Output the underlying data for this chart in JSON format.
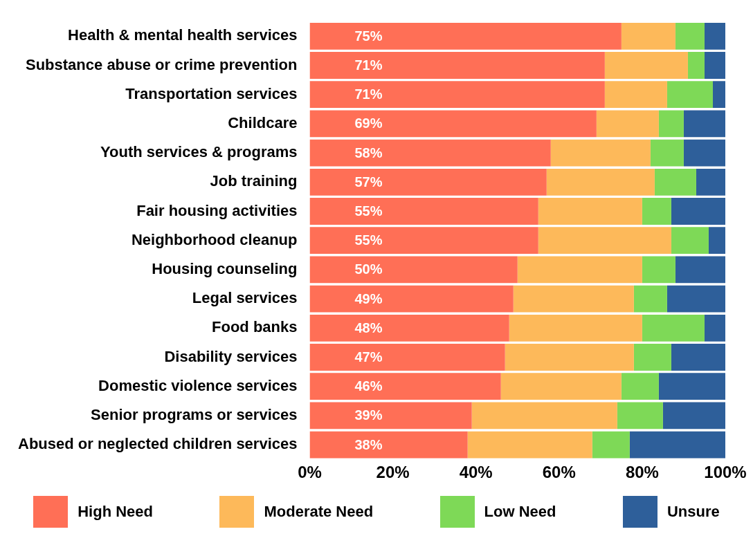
{
  "chart_data": {
    "type": "bar",
    "orientation": "horizontal",
    "stacked": true,
    "categories": [
      "Health & mental health services",
      "Substance abuse or crime prevention",
      "Transportation services",
      "Childcare",
      "Youth services & programs",
      "Job training",
      "Fair housing activities",
      "Neighborhood cleanup",
      "Housing counseling",
      "Legal services",
      "Food banks",
      "Disability services",
      "Domestic violence services",
      "Senior programs or services",
      "Abused or neglected children services"
    ],
    "series": [
      {
        "name": "High Need",
        "color": "#ff6f56",
        "values": [
          75,
          71,
          71,
          69,
          58,
          57,
          55,
          55,
          50,
          49,
          48,
          47,
          46,
          39,
          38
        ],
        "value_labels": [
          "75%",
          "71%",
          "71%",
          "69%",
          "58%",
          "57%",
          "55%",
          "55%",
          "50%",
          "49%",
          "48%",
          "47%",
          "46%",
          "39%",
          "38%"
        ]
      },
      {
        "name": "Moderate Need",
        "color": "#fdb95a",
        "values": [
          13,
          20,
          15,
          15,
          24,
          26,
          25,
          32,
          30,
          29,
          32,
          31,
          29,
          35,
          30
        ]
      },
      {
        "name": "Low Need",
        "color": "#7ed957",
        "values": [
          7,
          4,
          11,
          6,
          8,
          10,
          7,
          9,
          8,
          8,
          15,
          9,
          9,
          11,
          9
        ]
      },
      {
        "name": "Unsure",
        "color": "#2e5f9a",
        "values": [
          5,
          5,
          3,
          10,
          10,
          7,
          13,
          4,
          12,
          14,
          5,
          13,
          16,
          15,
          23
        ]
      }
    ],
    "xlim": [
      0,
      100
    ],
    "xticks": [
      {
        "value": 0,
        "label": "0%"
      },
      {
        "value": 20,
        "label": "20%"
      },
      {
        "value": 40,
        "label": "40%"
      },
      {
        "value": 60,
        "label": "60%"
      },
      {
        "value": 80,
        "label": "80%"
      },
      {
        "value": 100,
        "label": "100%"
      }
    ],
    "grid": false,
    "legend": "bottom"
  }
}
